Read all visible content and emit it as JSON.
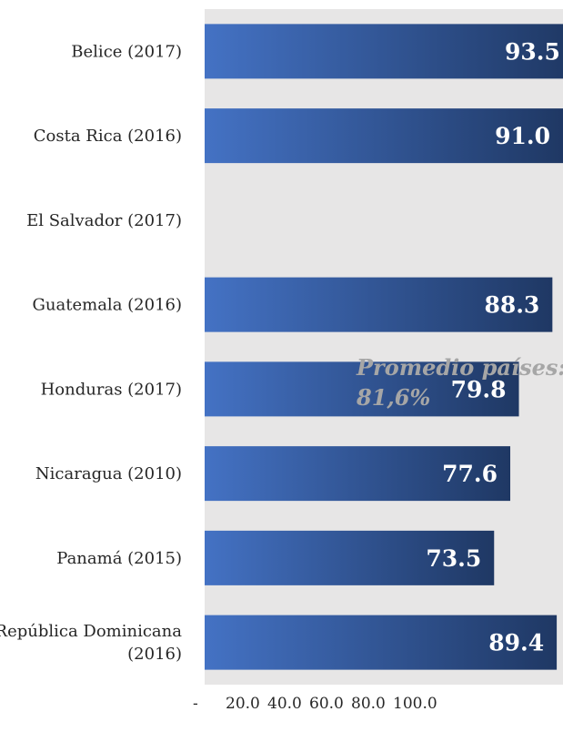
{
  "chart_data": {
    "type": "bar",
    "orientation": "horizontal",
    "categories": [
      [
        "Belice (2017)"
      ],
      [
        "Costa Rica (2016)"
      ],
      [
        "El Salvador (2017)"
      ],
      [
        "Guatemala (2016)"
      ],
      [
        "Honduras (2017)"
      ],
      [
        "Nicaragua (2010)"
      ],
      [
        "Panamá (2015)"
      ],
      [
        "República Dominicana",
        "(2016)"
      ]
    ],
    "values": [
      93.5,
      91.0,
      null,
      88.3,
      79.8,
      77.6,
      73.5,
      89.4
    ],
    "value_labels": [
      "93.5",
      "91.0",
      "",
      "88.3",
      "79.8",
      "77.6",
      "73.5",
      "89.4"
    ],
    "xlim": [
      0,
      100
    ],
    "x_tick_labels": [
      "-",
      "20.0",
      "40.0",
      "60.0",
      "80.0",
      "100.0"
    ],
    "shaded_band": [
      0,
      100
    ],
    "annotation": [
      "Promedio países:",
      "81,6%"
    ],
    "colors": {
      "bar_left": "#4472c4",
      "bar_right": "#1f3864",
      "band": "#e7e6e6",
      "annotation": "#a6a6a6",
      "text": "#262626"
    }
  }
}
